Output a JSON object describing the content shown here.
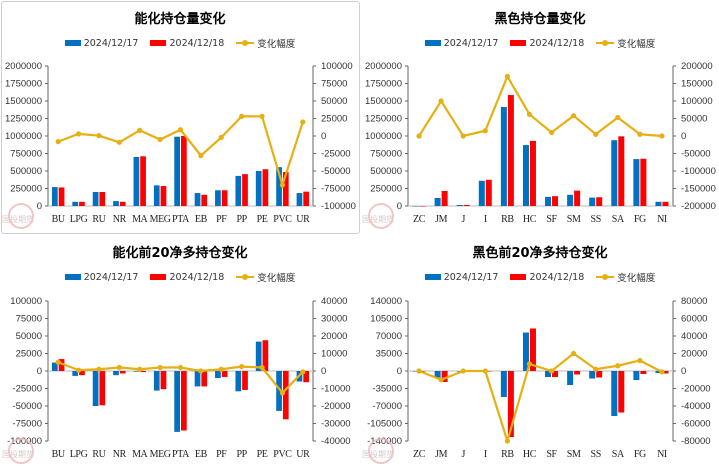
{
  "legend": {
    "s1": "2024/12/17",
    "s2": "2024/12/18",
    "line": "变化幅度"
  },
  "watermark": "国投期货",
  "colors": {
    "s1": "#0070c0",
    "s2": "#ff0000",
    "line": "#e6b012"
  },
  "chart_data": [
    {
      "type": "bar",
      "title": "能化持仓量变化",
      "categories": [
        "BU",
        "LPG",
        "RU",
        "NR",
        "MA",
        "MEG",
        "PTA",
        "EB",
        "PF",
        "PP",
        "PE",
        "PVC",
        "UR"
      ],
      "series": [
        {
          "name": "2024/12/17",
          "axis": "left",
          "values": [
            270000,
            60000,
            200000,
            70000,
            700000,
            295000,
            990000,
            185000,
            225000,
            430000,
            500000,
            555000,
            185000
          ]
        },
        {
          "name": "2024/12/18",
          "axis": "left",
          "values": [
            265000,
            60000,
            200000,
            60000,
            710000,
            285000,
            1000000,
            160000,
            225000,
            455000,
            525000,
            485000,
            205000
          ]
        },
        {
          "name": "变化幅度",
          "axis": "right",
          "type": "line",
          "values": [
            -8000,
            3000,
            500,
            -9000,
            8000,
            -5000,
            9000,
            -28000,
            -2000,
            28000,
            28000,
            -70000,
            20000
          ]
        }
      ],
      "ylim": [
        0,
        2000000
      ],
      "yticks": [
        0,
        250000,
        500000,
        750000,
        1000000,
        1250000,
        1500000,
        1750000,
        2000000
      ],
      "y2lim": [
        -100000,
        100000
      ],
      "y2ticks": [
        -100000,
        -75000,
        -50000,
        -25000,
        0,
        25000,
        50000,
        75000,
        100000
      ],
      "legend": "top"
    },
    {
      "type": "bar",
      "title": "黑色持仓量变化",
      "categories": [
        "ZC",
        "JM",
        "J",
        "I",
        "RB",
        "HC",
        "SF",
        "SM",
        "SS",
        "SA",
        "FG",
        "NI"
      ],
      "series": [
        {
          "name": "2024/12/17",
          "axis": "left",
          "values": [
            0,
            115000,
            15000,
            360000,
            1415000,
            870000,
            130000,
            160000,
            120000,
            940000,
            670000,
            60000
          ]
        },
        {
          "name": "2024/12/18",
          "axis": "left",
          "values": [
            0,
            215000,
            15000,
            375000,
            1585000,
            930000,
            140000,
            220000,
            125000,
            995000,
            675000,
            60000
          ]
        },
        {
          "name": "变化幅度",
          "axis": "right",
          "type": "line",
          "values": [
            0,
            100000,
            0,
            15000,
            170000,
            62000,
            10000,
            58000,
            5000,
            53000,
            5000,
            0
          ]
        }
      ],
      "ylim": [
        0,
        2000000
      ],
      "yticks": [
        0,
        250000,
        500000,
        750000,
        1000000,
        1250000,
        1500000,
        1750000,
        2000000
      ],
      "y2lim": [
        -200000,
        200000
      ],
      "y2ticks": [
        -200000,
        -150000,
        -100000,
        -50000,
        0,
        50000,
        100000,
        150000,
        200000
      ],
      "legend": "top"
    },
    {
      "type": "bar",
      "title": "能化前20净多持仓变化",
      "categories": [
        "BU",
        "LPG",
        "RU",
        "NR",
        "MA",
        "MEG",
        "PTA",
        "EB",
        "PF",
        "PP",
        "PE",
        "PVC",
        "UR"
      ],
      "series": [
        {
          "name": "2024/12/17",
          "axis": "left",
          "values": [
            12000,
            -7000,
            -50000,
            -6000,
            -1000,
            -28000,
            -87000,
            -22000,
            -10000,
            -29000,
            42000,
            -57000,
            -15000
          ]
        },
        {
          "name": "2024/12/18",
          "axis": "left",
          "values": [
            17000,
            -6000,
            -49000,
            -3500,
            -1500,
            -26000,
            -85000,
            -22000,
            -8500,
            -27000,
            44000,
            -69000,
            -16000
          ]
        },
        {
          "name": "变化幅度",
          "axis": "right",
          "type": "line",
          "values": [
            5000,
            500,
            1000,
            2000,
            1000,
            2000,
            2000,
            0,
            1000,
            2500,
            2000,
            -12500,
            -500
          ]
        }
      ],
      "ylim": [
        -100000,
        100000
      ],
      "yticks": [
        -100000,
        -75000,
        -50000,
        -25000,
        0,
        25000,
        50000,
        75000,
        100000
      ],
      "y2lim": [
        -40000,
        40000
      ],
      "y2ticks": [
        -40000,
        -30000,
        -20000,
        -10000,
        0,
        10000,
        20000,
        30000,
        40000
      ],
      "legend": "top"
    },
    {
      "type": "bar",
      "title": "黑色前20净多持仓变化",
      "categories": [
        "ZC",
        "JM",
        "J",
        "I",
        "RB",
        "HC",
        "SF",
        "SM",
        "SS",
        "SA",
        "FG",
        "NI"
      ],
      "series": [
        {
          "name": "2024/12/17",
          "axis": "left",
          "values": [
            0,
            -13000,
            0,
            0,
            -52000,
            77000,
            -12000,
            -28000,
            -15000,
            -90000,
            -18000,
            -4000
          ]
        },
        {
          "name": "2024/12/18",
          "axis": "left",
          "values": [
            0,
            -22000,
            0,
            -500,
            -132000,
            85000,
            -12000,
            -7000,
            -13000,
            -83000,
            -6000,
            -5000
          ]
        },
        {
          "name": "变化幅度",
          "axis": "right",
          "type": "line",
          "values": [
            0,
            -10000,
            0,
            0,
            -80000,
            8000,
            0,
            20000,
            2000,
            6000,
            12000,
            -1000
          ]
        }
      ],
      "ylim": [
        -140000,
        140000
      ],
      "yticks": [
        -140000,
        -105000,
        -70000,
        -35000,
        0,
        35000,
        70000,
        105000,
        140000
      ],
      "y2lim": [
        -80000,
        80000
      ],
      "y2ticks": [
        -80000,
        -60000,
        -40000,
        -20000,
        0,
        20000,
        40000,
        60000,
        80000
      ],
      "legend": "top"
    }
  ]
}
